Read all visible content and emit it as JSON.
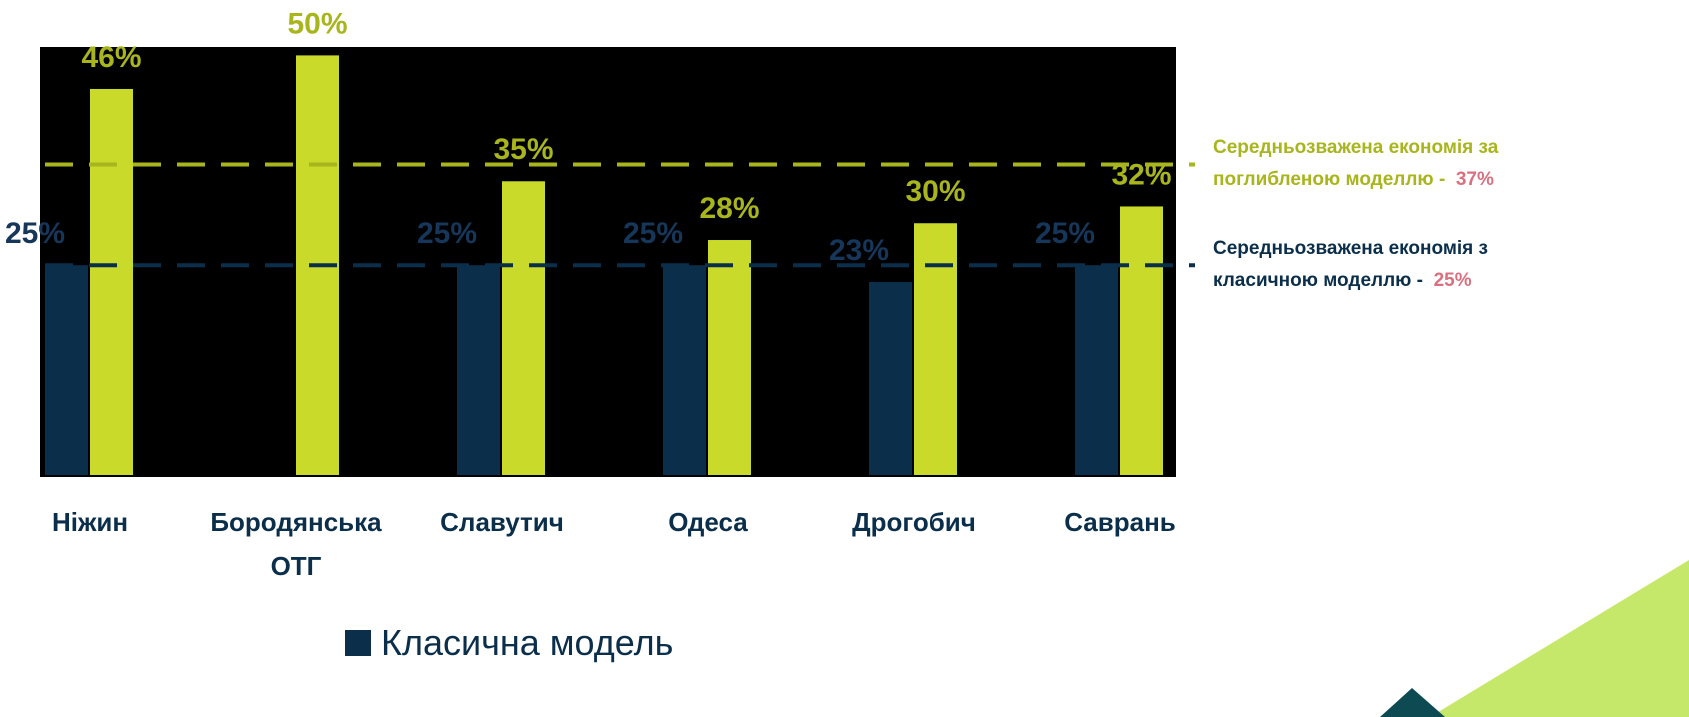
{
  "chart_data": {
    "type": "bar",
    "categories": [
      "Ніжин",
      "Бородянська ОТГ",
      "Славутич",
      "Одеса",
      "Дрогобич",
      "Саврань"
    ],
    "series": [
      {
        "name": "Класична модель",
        "color": "#0b2e4a",
        "label_color": "#16365a",
        "values": [
          25,
          null,
          25,
          25,
          23,
          25
        ],
        "value_labels": [
          "25%",
          null,
          "25%",
          "25%",
          "23%",
          "25%"
        ]
      },
      {
        "color": "#c9da2a",
        "label_color": "#a8b51c",
        "values": [
          46,
          50,
          35,
          28,
          30,
          32
        ],
        "value_labels": [
          "46%",
          "50%",
          "35%",
          "28%",
          "30%",
          "32%"
        ]
      }
    ],
    "ylim": [
      0,
      51
    ],
    "plot_background": "#000000",
    "reference_lines": [
      {
        "value": 37,
        "color": "#a8b51c",
        "label": "Середньозважена економія за поглибленою моделлю -",
        "value_label": "37%",
        "value_label_color": "#d9707f"
      },
      {
        "value": 25,
        "color": "#0b2e4a",
        "label": "Середньозважена економія з класичною моделлю -",
        "value_label": "25%",
        "value_label_color": "#d9707f"
      }
    ]
  }
}
